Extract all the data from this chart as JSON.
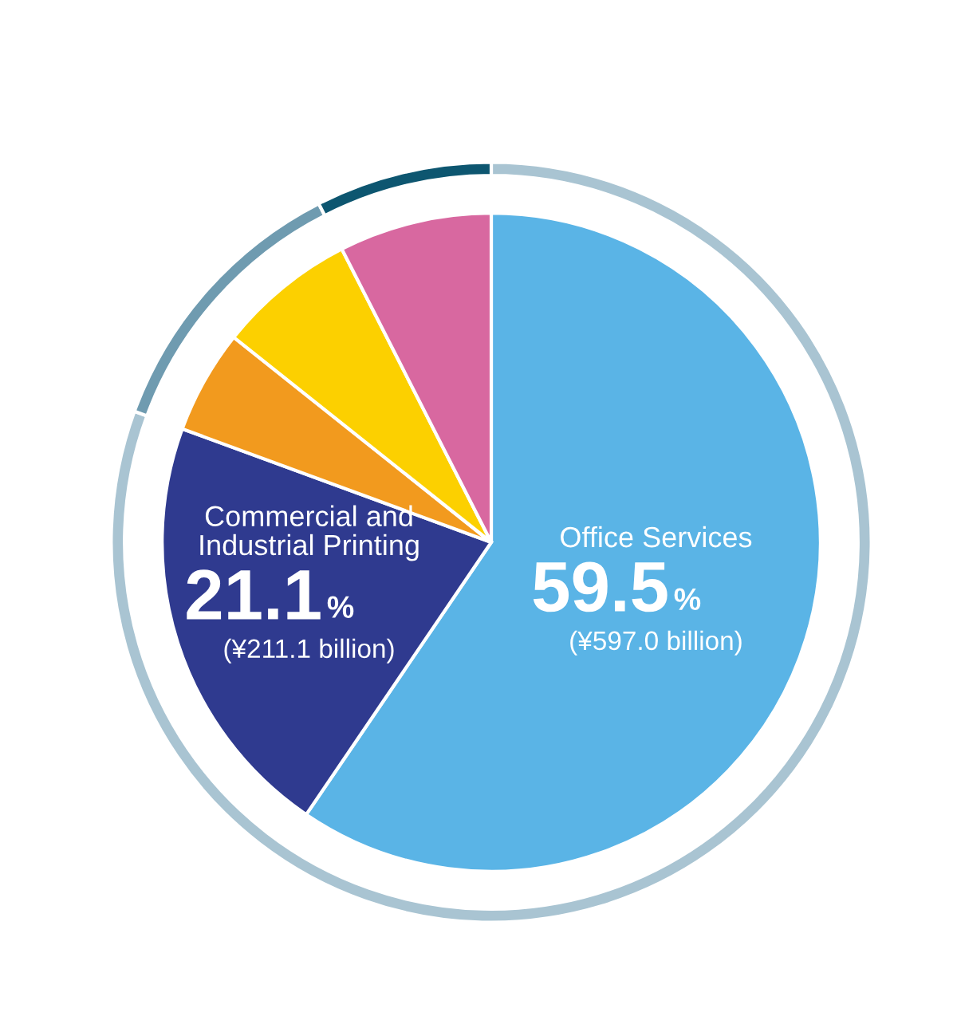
{
  "chart_data": {
    "type": "pie",
    "categories": [
      "Office Services",
      "Commercial and\nIndustrial Printing",
      null,
      null,
      null
    ],
    "series": [
      {
        "values": [
          59.5,
          21.1,
          5.1,
          6.8,
          7.5
        ],
        "colors": [
          "#5ab4e6",
          "#2f3a8f",
          "#f29a1e",
          "#fcd000",
          "#d868a0"
        ],
        "value_labels": [
          "59.5%",
          "21.1%",
          null,
          null,
          null
        ]
      },
      {
        "type": "donut",
        "values": [
          80.6,
          null,
          11.9,
          null,
          7.5
        ],
        "colors": [
          "#a9c4d2",
          null,
          "#6f9bb0",
          null,
          "#0d5670"
        ]
      }
    ],
    "annotations": [
      "(¥597.0 billion)",
      "(¥211.1 billion)"
    ]
  }
}
